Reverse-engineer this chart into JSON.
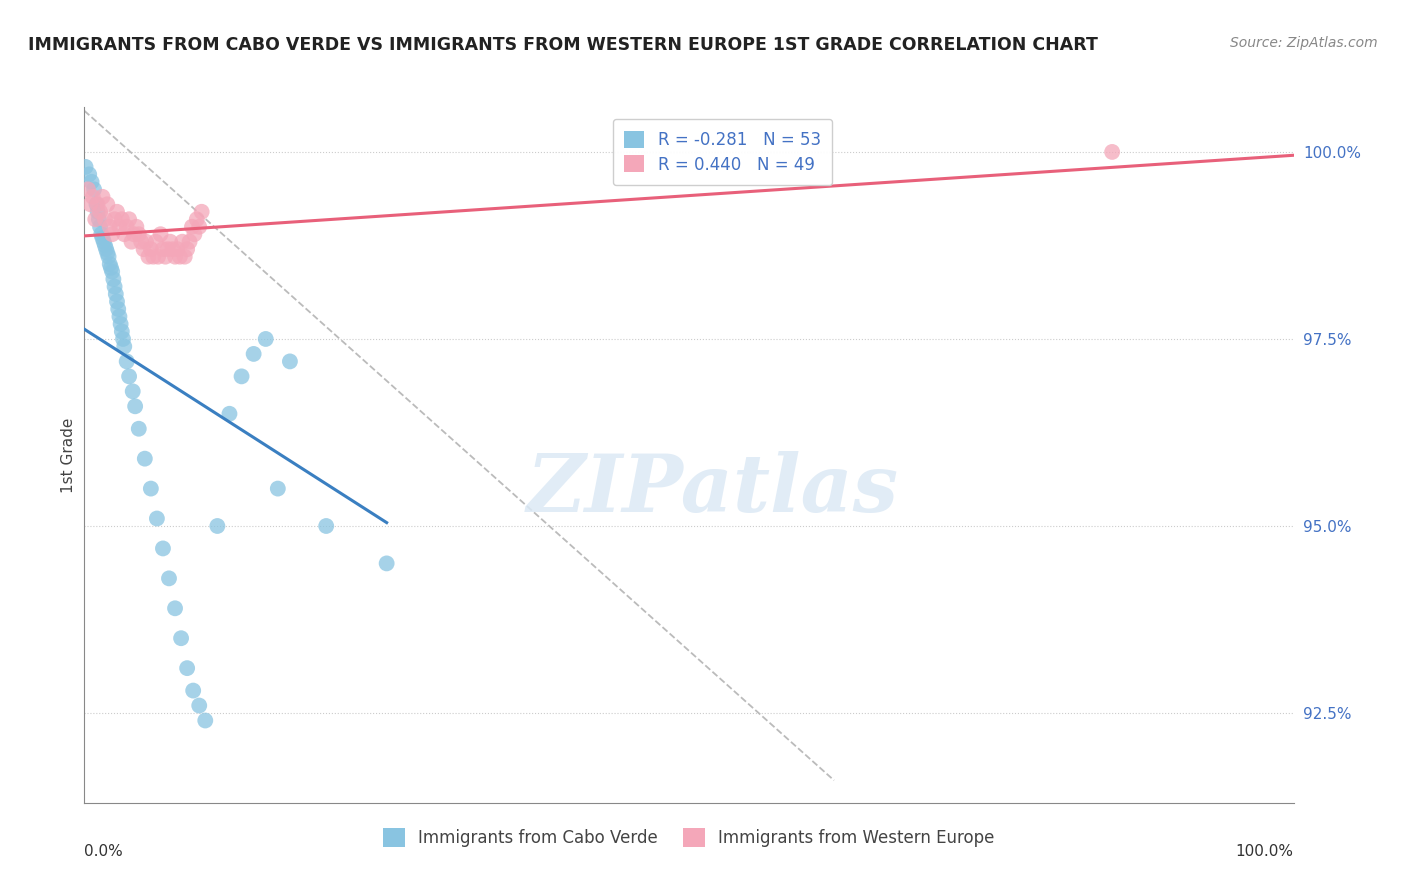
{
  "title": "IMMIGRANTS FROM CABO VERDE VS IMMIGRANTS FROM WESTERN EUROPE 1ST GRADE CORRELATION CHART",
  "source": "Source: ZipAtlas.com",
  "ylabel": "1st Grade",
  "xmin": 0.0,
  "xmax": 100.0,
  "ymin": 91.3,
  "ymax": 100.6,
  "yticks": [
    92.5,
    95.0,
    97.5,
    100.0
  ],
  "ytick_labels": [
    "92.5%",
    "95.0%",
    "97.5%",
    "100.0%"
  ],
  "blue_R": -0.281,
  "blue_N": 53,
  "pink_R": 0.44,
  "pink_N": 49,
  "blue_color": "#89c4e1",
  "pink_color": "#f4a7b9",
  "blue_line_color": "#3a7fc1",
  "pink_line_color": "#e8607a",
  "watermark": "ZIPatlas",
  "cabo_verde_x": [
    0.1,
    0.4,
    0.6,
    0.8,
    1.0,
    1.1,
    1.2,
    1.3,
    1.4,
    1.5,
    1.6,
    1.7,
    1.8,
    1.9,
    2.0,
    2.1,
    2.2,
    2.3,
    2.4,
    2.5,
    2.6,
    2.7,
    2.8,
    2.9,
    3.0,
    3.1,
    3.2,
    3.3,
    3.5,
    3.7,
    4.0,
    4.2,
    4.5,
    5.0,
    5.5,
    6.0,
    6.5,
    7.0,
    7.5,
    8.0,
    8.5,
    9.0,
    9.5,
    10.0,
    11.0,
    12.0,
    13.0,
    14.0,
    15.0,
    16.0,
    17.0,
    20.0,
    25.0
  ],
  "cabo_verde_y": [
    99.8,
    99.7,
    99.6,
    99.5,
    99.3,
    99.2,
    99.1,
    99.0,
    98.9,
    98.85,
    98.8,
    98.75,
    98.7,
    98.65,
    98.6,
    98.5,
    98.45,
    98.4,
    98.3,
    98.2,
    98.1,
    98.0,
    97.9,
    97.8,
    97.7,
    97.6,
    97.5,
    97.4,
    97.2,
    97.0,
    96.8,
    96.6,
    96.3,
    95.9,
    95.5,
    95.1,
    94.7,
    94.3,
    93.9,
    93.5,
    93.1,
    92.8,
    92.6,
    92.4,
    95.0,
    96.5,
    97.0,
    97.3,
    97.5,
    95.5,
    97.2,
    95.0,
    94.5
  ],
  "western_europe_x": [
    0.3,
    0.5,
    0.7,
    0.9,
    1.1,
    1.3,
    1.5,
    1.7,
    1.9,
    2.1,
    2.3,
    2.5,
    2.7,
    2.9,
    3.1,
    3.3,
    3.5,
    3.7,
    3.9,
    4.1,
    4.3,
    4.5,
    4.7,
    4.9,
    5.1,
    5.3,
    5.5,
    5.7,
    5.9,
    6.1,
    6.3,
    6.5,
    6.7,
    6.9,
    7.1,
    7.3,
    7.5,
    7.7,
    7.9,
    8.1,
    8.3,
    8.5,
    8.7,
    8.9,
    9.1,
    9.3,
    9.5,
    9.7,
    85.0
  ],
  "western_europe_y": [
    99.5,
    99.3,
    99.4,
    99.1,
    99.3,
    99.2,
    99.4,
    99.1,
    99.3,
    99.0,
    98.9,
    99.1,
    99.2,
    99.0,
    99.1,
    98.9,
    99.0,
    99.1,
    98.8,
    98.9,
    99.0,
    98.9,
    98.8,
    98.7,
    98.8,
    98.6,
    98.7,
    98.6,
    98.8,
    98.6,
    98.9,
    98.7,
    98.6,
    98.7,
    98.8,
    98.7,
    98.6,
    98.7,
    98.6,
    98.8,
    98.6,
    98.7,
    98.8,
    99.0,
    98.9,
    99.1,
    99.0,
    99.2,
    100.0
  ]
}
